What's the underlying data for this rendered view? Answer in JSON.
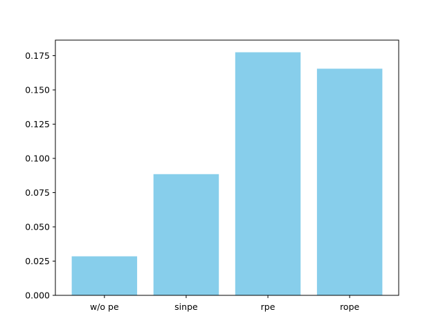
{
  "chart_data": {
    "type": "bar",
    "categories": [
      "w/o pe",
      "sinpe",
      "rpe",
      "rope"
    ],
    "values": [
      0.0285,
      0.0885,
      0.1775,
      0.1655
    ],
    "yticks": [
      0.0,
      0.025,
      0.05,
      0.075,
      0.1,
      0.125,
      0.15,
      0.175
    ],
    "ytick_labels": [
      "0.000",
      "0.025",
      "0.050",
      "0.075",
      "0.100",
      "0.125",
      "0.150",
      "0.175"
    ],
    "ylim": [
      0,
      0.18637
    ],
    "grid": false,
    "legend": "none",
    "bar_color": "#87CEEB"
  }
}
